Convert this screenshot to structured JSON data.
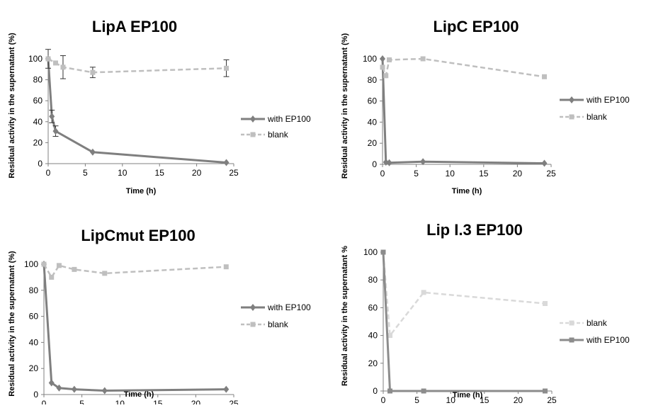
{
  "chart_data": [
    {
      "type": "line",
      "title": "LipA EP100",
      "xlabel": "Time (h)",
      "ylabel": "Residual activity  in the supernatant (%)",
      "xlim": [
        0,
        25
      ],
      "ylim": [
        0,
        100
      ],
      "xticks": [
        0,
        5,
        10,
        15,
        20,
        25
      ],
      "yticks": [
        0,
        20,
        40,
        60,
        80,
        100
      ],
      "grid": false,
      "legend": "right",
      "series": [
        {
          "name": "with EP100",
          "color": "#7f7f7f",
          "dash": false,
          "marker": "diamond",
          "x": [
            0,
            0.5,
            1,
            6,
            24
          ],
          "y": [
            100,
            45,
            31,
            11,
            1
          ],
          "err": [
            9,
            6,
            5,
            0,
            0
          ]
        },
        {
          "name": "blank",
          "color": "#bfbfbf",
          "dash": true,
          "marker": "square",
          "x": [
            0,
            1,
            2,
            6,
            24
          ],
          "y": [
            100,
            96,
            92,
            87,
            91
          ],
          "err": [
            0,
            0,
            11,
            5,
            8
          ]
        }
      ]
    },
    {
      "type": "line",
      "title": "LipC EP100",
      "xlabel": "Time (h)",
      "ylabel": "Residual activity  in the supernatant (%)",
      "xlim": [
        0,
        25
      ],
      "ylim": [
        0,
        100
      ],
      "xticks": [
        0,
        5,
        10,
        15,
        20,
        25
      ],
      "yticks": [
        0,
        20,
        40,
        60,
        80,
        100
      ],
      "grid": false,
      "legend": "right",
      "series": [
        {
          "name": "with EP100",
          "color": "#7f7f7f",
          "dash": false,
          "marker": "diamond",
          "x": [
            0,
            0.5,
            1,
            6,
            24
          ],
          "y": [
            100,
            2,
            1.5,
            2.5,
            1
          ]
        },
        {
          "name": "blank",
          "color": "#bfbfbf",
          "dash": true,
          "marker": "square",
          "x": [
            0,
            0.5,
            1,
            6,
            24
          ],
          "y": [
            92,
            84,
            99,
            100,
            83
          ]
        }
      ]
    },
    {
      "type": "line",
      "title": "LipCmut EP100",
      "xlabel": "Time (h)",
      "ylabel": "Residual activity  in the supernatant (%)",
      "xlim": [
        0,
        25
      ],
      "ylim": [
        0,
        100
      ],
      "xticks": [
        0,
        5,
        10,
        15,
        20,
        25
      ],
      "yticks": [
        0,
        20,
        40,
        60,
        80,
        100
      ],
      "grid": false,
      "legend": "right",
      "series": [
        {
          "name": "with EP100",
          "color": "#7f7f7f",
          "dash": false,
          "marker": "diamond",
          "x": [
            0,
            1,
            2,
            4,
            8,
            24
          ],
          "y": [
            100,
            9,
            5,
            4,
            3,
            4
          ]
        },
        {
          "name": "blank",
          "color": "#bfbfbf",
          "dash": true,
          "marker": "square",
          "x": [
            0,
            1,
            2,
            4,
            8,
            24
          ],
          "y": [
            100,
            90,
            99,
            96,
            93,
            98
          ]
        }
      ]
    },
    {
      "type": "line",
      "title": "Lip I.3 EP100",
      "xlabel": "Time (h)",
      "ylabel": "Residual activity  in the supernatant %",
      "xlim": [
        0,
        25
      ],
      "ylim": [
        0,
        100
      ],
      "xticks": [
        0,
        5,
        10,
        15,
        20,
        25
      ],
      "yticks": [
        0,
        20,
        40,
        60,
        80,
        100
      ],
      "grid": false,
      "legend": "right",
      "series": [
        {
          "name": "blank",
          "color": "#d9d9d9",
          "dash": true,
          "marker": "square",
          "x": [
            0,
            1,
            6,
            24
          ],
          "y": [
            100,
            40,
            71,
            63
          ]
        },
        {
          "name": "with EP100",
          "color": "#8c8c8c",
          "dash": false,
          "marker": "square",
          "x": [
            0,
            1,
            6,
            24
          ],
          "y": [
            100,
            0,
            0,
            0
          ]
        }
      ]
    }
  ]
}
